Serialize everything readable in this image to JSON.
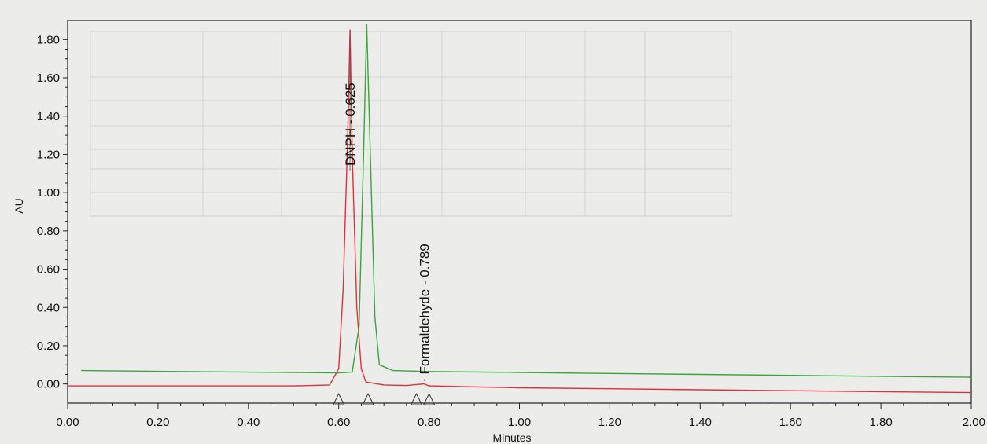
{
  "chart_data": {
    "type": "line",
    "title": "",
    "xlabel": "Minutes",
    "ylabel": "AU",
    "xlim": [
      0.0,
      2.0
    ],
    "ylim": [
      -0.1,
      1.9
    ],
    "xticks": [
      0.0,
      0.2,
      0.4,
      0.6,
      0.8,
      1.0,
      1.2,
      1.4,
      1.6,
      1.8,
      2.0
    ],
    "xtick_labels": [
      "0.00",
      "0.20",
      "0.40",
      "0.60",
      "0.80",
      "1.00",
      "1.20",
      "1.40",
      "1.60",
      "1.80",
      "2.00"
    ],
    "yticks": [
      0.0,
      0.2,
      0.4,
      0.6,
      0.8,
      1.0,
      1.2,
      1.4,
      1.6,
      1.8
    ],
    "ytick_labels": [
      "0.00",
      "0.20",
      "0.40",
      "0.60",
      "0.80",
      "1.00",
      "1.20",
      "1.40",
      "1.60",
      "1.80"
    ],
    "grid": false,
    "series": [
      {
        "color": "#e0303a",
        "x": [
          0.0,
          0.2,
          0.4,
          0.5,
          0.58,
          0.6,
          0.61,
          0.62,
          0.625,
          0.63,
          0.64,
          0.65,
          0.66,
          0.7,
          0.75,
          0.789,
          0.8,
          0.9,
          1.0,
          1.2,
          1.4,
          1.6,
          1.8,
          2.0
        ],
        "y": [
          -0.01,
          -0.01,
          -0.01,
          -0.01,
          -0.005,
          0.08,
          0.5,
          1.3,
          1.85,
          1.2,
          0.4,
          0.08,
          0.01,
          -0.005,
          -0.008,
          0.0,
          -0.01,
          -0.015,
          -0.02,
          -0.025,
          -0.03,
          -0.035,
          -0.04,
          -0.045
        ]
      },
      {
        "color": "#3aa53a",
        "x": [
          0.03,
          0.2,
          0.4,
          0.5,
          0.6,
          0.63,
          0.645,
          0.655,
          0.662,
          0.67,
          0.68,
          0.69,
          0.72,
          0.8,
          1.0,
          1.2,
          1.4,
          1.6,
          1.8,
          2.0
        ],
        "y": [
          0.07,
          0.066,
          0.062,
          0.06,
          0.058,
          0.062,
          0.3,
          1.2,
          1.88,
          1.2,
          0.35,
          0.1,
          0.07,
          0.065,
          0.06,
          0.055,
          0.05,
          0.045,
          0.04,
          0.035
        ]
      }
    ],
    "peaks": [
      {
        "x": 0.625,
        "y": 1.85,
        "label": "DNPH - 0.625"
      },
      {
        "x": 0.789,
        "y": 0.0,
        "label": "Formaldehyde - 0.789"
      }
    ],
    "integration_markers_x": [
      0.6,
      0.665,
      0.772,
      0.8
    ]
  }
}
